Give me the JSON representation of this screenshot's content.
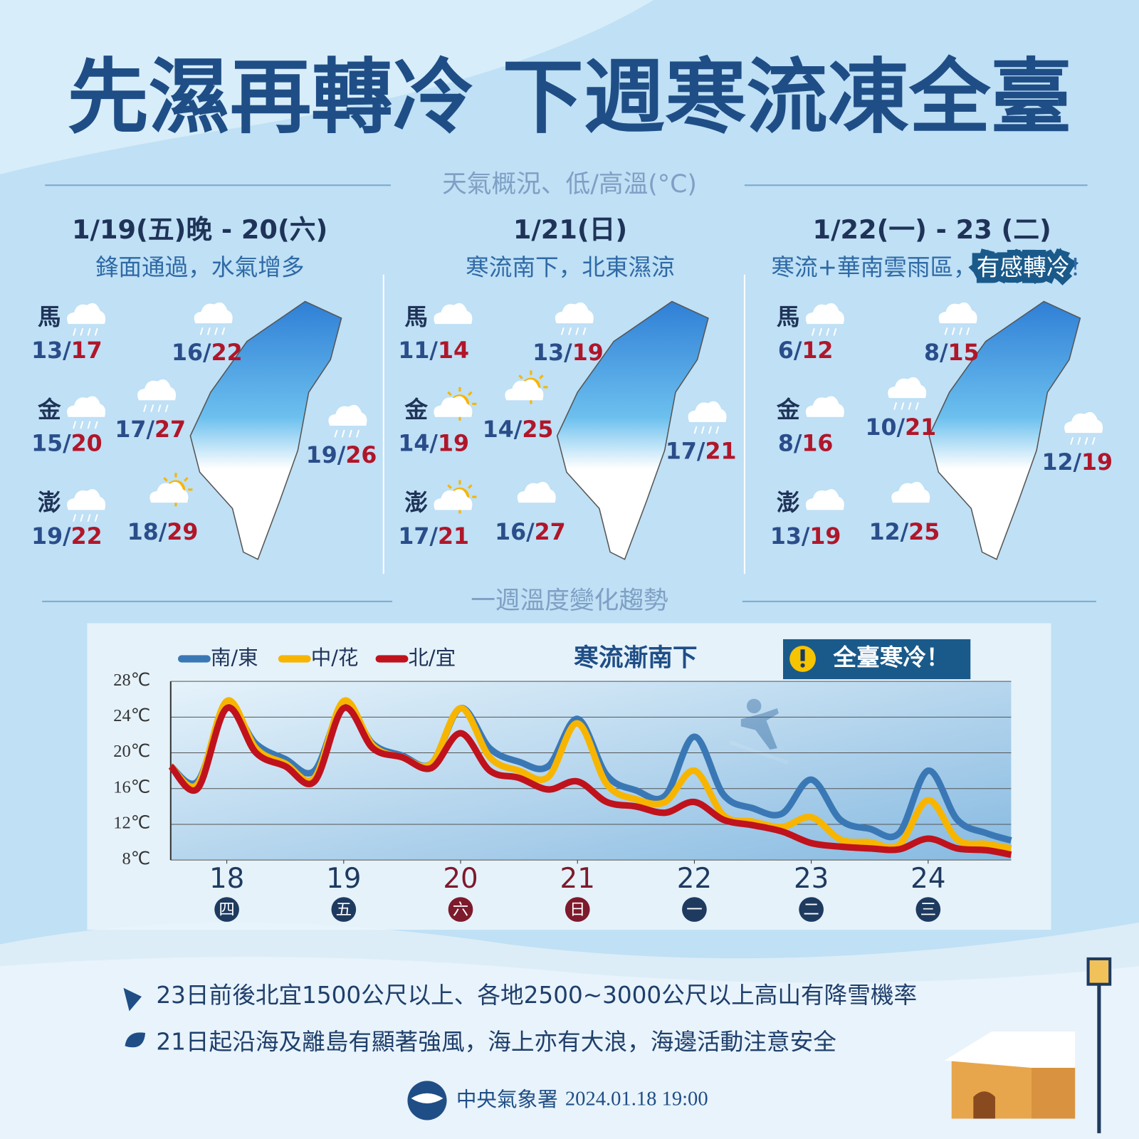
{
  "header": {
    "title": "先濕再轉冷 下週寒流凍全臺",
    "section_overview": "天氣概況、低/高溫(°C)",
    "section_trend": "一週溫度變化趨勢"
  },
  "temp_separator": "/",
  "panels": [
    {
      "date": "1/19(五)晚 - 20(六)",
      "subtitle": "鋒面通過，水氣增多",
      "islands": [
        {
          "name": "馬",
          "icon": "rain",
          "low": 13,
          "high": 17
        },
        {
          "name": "金",
          "icon": "rain",
          "low": 15,
          "high": 20
        },
        {
          "name": "澎",
          "icon": "rain",
          "low": 19,
          "high": 22
        }
      ],
      "spots": [
        {
          "icon": "rain",
          "low": 16,
          "high": 22
        },
        {
          "icon": "rain",
          "low": 17,
          "high": 27
        },
        {
          "icon": "rain",
          "low": 19,
          "high": 26
        },
        {
          "icon": "sun",
          "low": 18,
          "high": 29
        }
      ]
    },
    {
      "date": "1/21(日)",
      "subtitle": "寒流南下，北東濕涼",
      "islands": [
        {
          "name": "馬",
          "icon": "cloud",
          "low": 11,
          "high": 14
        },
        {
          "name": "金",
          "icon": "sun",
          "low": 14,
          "high": 19
        },
        {
          "name": "澎",
          "icon": "sun",
          "low": 17,
          "high": 21
        }
      ],
      "spots": [
        {
          "icon": "rain",
          "low": 13,
          "high": 19
        },
        {
          "icon": "sun",
          "low": 14,
          "high": 25
        },
        {
          "icon": "rain",
          "low": 17,
          "high": 21
        },
        {
          "icon": "cloud",
          "low": 16,
          "high": 27
        }
      ]
    },
    {
      "date": "1/22(一) - 23 (二)",
      "subtitle": "寒流+華南雲雨區，",
      "subtitle_highlight": "有感轉冷",
      "subtitle_end": "！",
      "islands": [
        {
          "name": "馬",
          "icon": "rain",
          "low": 6,
          "high": 12
        },
        {
          "name": "金",
          "icon": "cloud",
          "low": 8,
          "high": 16
        },
        {
          "name": "澎",
          "icon": "cloud",
          "low": 13,
          "high": 19
        }
      ],
      "spots": [
        {
          "icon": "rain",
          "low": 8,
          "high": 15
        },
        {
          "icon": "rain",
          "low": 10,
          "high": 21
        },
        {
          "icon": "rain",
          "low": 12,
          "high": 19
        },
        {
          "icon": "cloud",
          "low": 12,
          "high": 25
        }
      ]
    }
  ],
  "chart_data": {
    "type": "line",
    "annotation": "寒流漸南下",
    "alert": "全臺寒冷！",
    "x": [
      17.52,
      17.75,
      18,
      18.25,
      18.5,
      18.75,
      19,
      19.25,
      19.5,
      19.75,
      20,
      20.25,
      20.5,
      20.75,
      21,
      21.25,
      21.5,
      21.75,
      22,
      22.25,
      22.5,
      22.75,
      23,
      23.25,
      23.5,
      23.75,
      24,
      24.25,
      24.5,
      24.71
    ],
    "xlim": [
      17.52,
      24.71
    ],
    "xticks": [
      18,
      19,
      20,
      21,
      22,
      23,
      24
    ],
    "xtick_sublabels": [
      "四",
      "五",
      "六",
      "日",
      "一",
      "二",
      "三"
    ],
    "xtick_colors": [
      "#1e3a5f",
      "#1e3a5f",
      "#7d1a2c",
      "#7d1a2c",
      "#1e3a5f",
      "#1e3a5f",
      "#1e3a5f"
    ],
    "ylim": [
      8,
      28
    ],
    "yticks": [
      {
        "value": 8,
        "label": "8℃"
      },
      {
        "value": 12,
        "label": "12℃"
      },
      {
        "value": 16,
        "label": "16℃"
      },
      {
        "value": 20,
        "label": "20℃"
      },
      {
        "value": 24,
        "label": "24℃"
      },
      {
        "value": 28,
        "label": "28℃"
      }
    ],
    "grid": true,
    "series": [
      {
        "name": "南/東",
        "color": "#3a78b5",
        "values": [
          18.5,
          16.8,
          25,
          21,
          19.3,
          18,
          25.3,
          21,
          19.7,
          18.8,
          25,
          20.5,
          19,
          18.5,
          23.8,
          17.5,
          15.8,
          15.2,
          21.8,
          15.3,
          13.8,
          13.2,
          17,
          12.5,
          11.5,
          11,
          18,
          12.5,
          11,
          10.2
        ]
      },
      {
        "name": "中/花",
        "color": "#f7b500",
        "values": [
          18.5,
          16.5,
          25.8,
          20.5,
          18.8,
          17.2,
          25.8,
          20.8,
          19.5,
          18.8,
          25,
          19.5,
          18,
          17.3,
          23.3,
          16.5,
          14.8,
          14.5,
          18,
          13,
          12.3,
          11.7,
          12.8,
          10.3,
          10,
          9.7,
          14.7,
          10.3,
          9.8,
          9.3
        ]
      },
      {
        "name": "北/宜",
        "color": "#c0121c",
        "values": [
          18.5,
          16,
          25,
          20,
          18.5,
          16.8,
          25,
          20.5,
          19.5,
          18.3,
          22.2,
          18,
          17.2,
          15.9,
          16.8,
          14.5,
          14,
          13.3,
          14.5,
          12.5,
          11.9,
          11.2,
          9.9,
          9.5,
          9.3,
          9.2,
          10.4,
          9.3,
          9.1,
          8.6
        ]
      }
    ]
  },
  "notes": [
    "23日前後北宜1500公尺以上、各地2500~3000公尺以上高山有降雪機率",
    "21日起沿海及離島有顯著強風，海上亦有大浪，海邊活動注意安全"
  ],
  "footer": {
    "agency": "中央氣象署",
    "timestamp": "2024.01.18  19:00"
  }
}
